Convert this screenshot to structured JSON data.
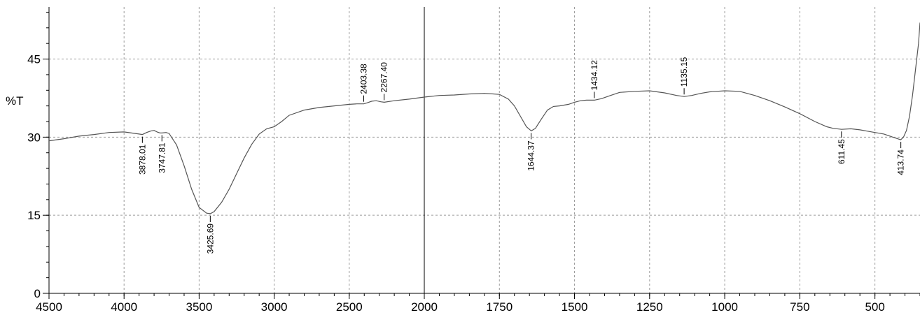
{
  "chart_data": {
    "type": "line",
    "title": "",
    "xlabel": "",
    "ylabel": "%T",
    "xlim": [
      4500,
      350
    ],
    "ylim": [
      0,
      55
    ],
    "x_axis_segments": [
      {
        "from": 4500,
        "to": 2000
      },
      {
        "from": 2000,
        "to": 350
      }
    ],
    "x_ticks": [
      4500,
      4000,
      3500,
      3000,
      2500,
      2000,
      1750,
      1500,
      1250,
      1000,
      750,
      500
    ],
    "y_ticks": [
      0,
      15,
      30,
      45
    ],
    "grid": true,
    "series": [
      {
        "x": [
          4500,
          4400,
          4300,
          4200,
          4100,
          4000,
          3950,
          3900,
          3878,
          3850,
          3820,
          3800,
          3780,
          3760,
          3748,
          3720,
          3700,
          3650,
          3600,
          3550,
          3500,
          3450,
          3425,
          3400,
          3350,
          3300,
          3250,
          3200,
          3150,
          3100,
          3050,
          3000,
          2950,
          2900,
          2800,
          2700,
          2600,
          2500,
          2450,
          2403,
          2380,
          2350,
          2320,
          2290,
          2267,
          2200,
          2100,
          2000,
          1950,
          1900,
          1850,
          1800,
          1770,
          1750,
          1720,
          1700,
          1680,
          1660,
          1644,
          1630,
          1610,
          1590,
          1570,
          1550,
          1520,
          1500,
          1480,
          1460,
          1434,
          1410,
          1380,
          1350,
          1300,
          1250,
          1200,
          1160,
          1135,
          1110,
          1080,
          1050,
          1000,
          950,
          900,
          850,
          800,
          750,
          700,
          660,
          640,
          611,
          580,
          550,
          520,
          500,
          470,
          440,
          425,
          414,
          405,
          395,
          385,
          375,
          365,
          355,
          350
        ],
        "y": [
          29.3,
          29.7,
          30.2,
          30.5,
          30.9,
          31.0,
          30.8,
          30.6,
          30.5,
          30.9,
          31.2,
          31.3,
          31.0,
          30.8,
          30.8,
          30.9,
          30.7,
          28.5,
          24.5,
          20.0,
          16.5,
          15.4,
          15.3,
          15.7,
          17.5,
          20.0,
          23.0,
          26.0,
          28.6,
          30.6,
          31.6,
          32.0,
          33.0,
          34.2,
          35.2,
          35.7,
          36.0,
          36.3,
          36.4,
          36.4,
          36.6,
          36.9,
          37.0,
          36.8,
          36.7,
          37.0,
          37.3,
          37.7,
          38.0,
          38.1,
          38.3,
          38.4,
          38.3,
          38.2,
          37.3,
          36.0,
          34.0,
          32.0,
          31.2,
          31.7,
          33.5,
          35.2,
          35.9,
          36.0,
          36.3,
          36.7,
          37.0,
          37.1,
          37.1,
          37.4,
          38.0,
          38.6,
          38.8,
          38.9,
          38.5,
          38.0,
          37.8,
          38.0,
          38.4,
          38.7,
          38.9,
          38.8,
          38.0,
          37.0,
          35.8,
          34.5,
          33.0,
          32.0,
          31.7,
          31.5,
          31.6,
          31.4,
          31.1,
          30.9,
          30.6,
          30.0,
          29.7,
          29.5,
          30.0,
          31.3,
          34.0,
          38.0,
          43.0,
          48.0,
          52.0
        ]
      }
    ],
    "peaks": [
      {
        "x": 3878.01,
        "label": "3878.01",
        "y": 30.5,
        "side": "below"
      },
      {
        "x": 3747.81,
        "label": "3747.81",
        "y": 30.8,
        "side": "below"
      },
      {
        "x": 3425.69,
        "label": "3425.69",
        "y": 15.3,
        "side": "below"
      },
      {
        "x": 2403.38,
        "label": "2403.38",
        "y": 36.4,
        "side": "above"
      },
      {
        "x": 2267.4,
        "label": "2267.40",
        "y": 36.7,
        "side": "above"
      },
      {
        "x": 1644.37,
        "label": "1644.37",
        "y": 31.2,
        "side": "below"
      },
      {
        "x": 1434.12,
        "label": "1434.12",
        "y": 37.1,
        "side": "above"
      },
      {
        "x": 1135.15,
        "label": "1135.15",
        "y": 37.8,
        "side": "above"
      },
      {
        "x": 611.45,
        "label": "611.45",
        "y": 31.5,
        "side": "below"
      },
      {
        "x": 413.74,
        "label": "413.74",
        "y": 29.5,
        "side": "below"
      }
    ]
  }
}
